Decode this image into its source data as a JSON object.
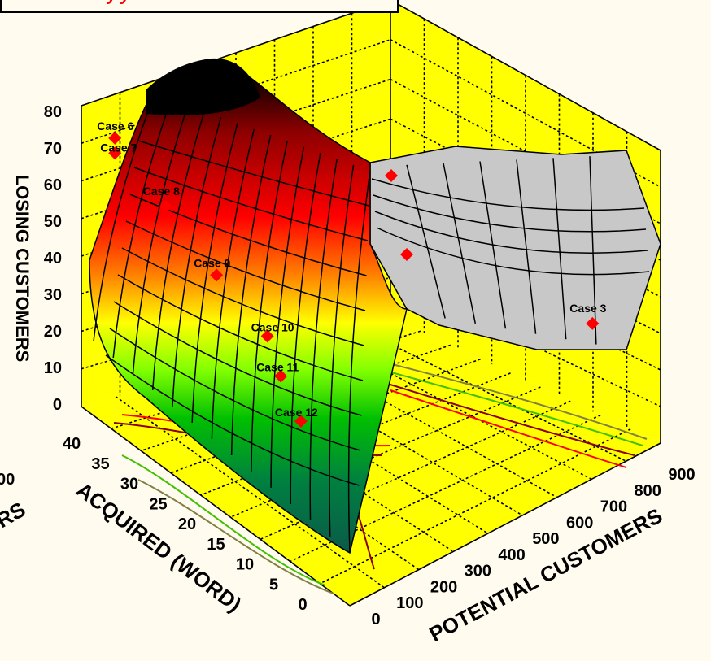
{
  "chart_data": {
    "type": "surface3d",
    "title_visible_fragment": "y                     y",
    "axes": {
      "z": {
        "label": "LOSING CUSTOMERS",
        "ticks": [
          "0",
          "10",
          "20",
          "30",
          "40",
          "50",
          "60",
          "70",
          "80"
        ],
        "range": [
          0,
          80
        ]
      },
      "y": {
        "label": "ACQUIRED (WORD)",
        "ticks": [
          "0",
          "5",
          "10",
          "15",
          "20",
          "25",
          "30",
          "35",
          "40"
        ],
        "range": [
          0,
          40
        ]
      },
      "x": {
        "label": "POTENTIAL CUSTOMERS",
        "ticks": [
          "0",
          "100",
          "200",
          "300",
          "400",
          "500",
          "600",
          "700",
          "800",
          "900"
        ],
        "range": [
          0,
          900
        ]
      },
      "clipped_left_tick": "00",
      "clipped_left_label": "RS"
    },
    "points": [
      {
        "name": "Case 6",
        "x": 0,
        "y": 35,
        "z": 78
      },
      {
        "name": "Case 7",
        "x": 0,
        "y": 35,
        "z": 74
      },
      {
        "name": "Case 8",
        "x": 50,
        "y": 30,
        "z": 64
      },
      {
        "name": "Case 9",
        "x": 100,
        "y": 25,
        "z": 50
      },
      {
        "name": "Case 10",
        "x": 150,
        "y": 20,
        "z": 38
      },
      {
        "name": "Case 11",
        "x": 150,
        "y": 18,
        "z": 30
      },
      {
        "name": "Case 12",
        "x": 150,
        "y": 15,
        "z": 22
      },
      {
        "name": "Case 3",
        "x": 800,
        "y": 5,
        "z": 30
      }
    ],
    "colors": {
      "walls": "#FFFF00",
      "point": "#FF0000",
      "surface_high": "#000000",
      "surface_low": "#0B5A4A",
      "surface_gray": "#C8C8C8"
    }
  }
}
